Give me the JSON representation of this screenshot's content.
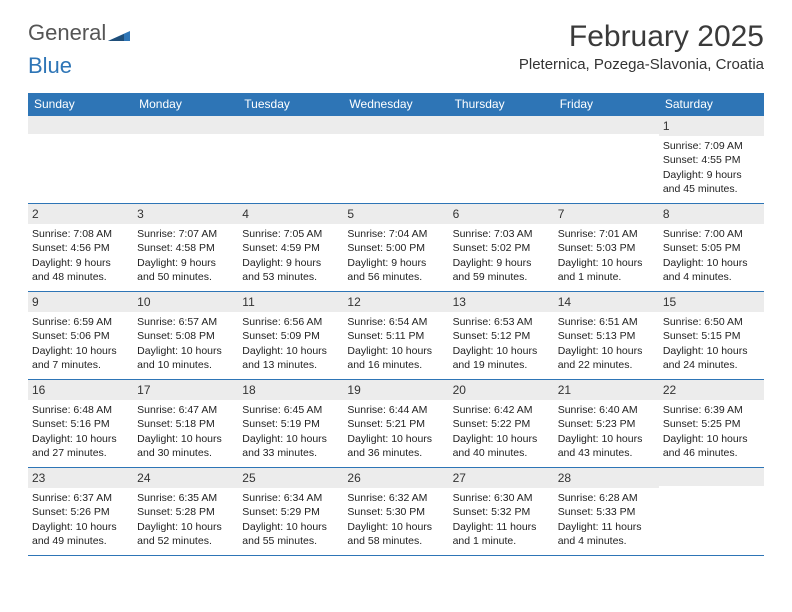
{
  "brand": {
    "word1": "General",
    "word2": "Blue"
  },
  "header": {
    "month": "February 2025",
    "location": "Pleternica, Pozega-Slavonia, Croatia"
  },
  "colors": {
    "accent": "#2e75b6",
    "row_alt": "#ececec",
    "text": "#222222",
    "bg": "#ffffff"
  },
  "days": [
    "Sunday",
    "Monday",
    "Tuesday",
    "Wednesday",
    "Thursday",
    "Friday",
    "Saturday"
  ],
  "weeks": [
    [
      null,
      null,
      null,
      null,
      null,
      null,
      {
        "n": "1",
        "sr": "Sunrise: 7:09 AM",
        "ss": "Sunset: 4:55 PM",
        "d1": "Daylight: 9 hours",
        "d2": "and 45 minutes."
      }
    ],
    [
      {
        "n": "2",
        "sr": "Sunrise: 7:08 AM",
        "ss": "Sunset: 4:56 PM",
        "d1": "Daylight: 9 hours",
        "d2": "and 48 minutes."
      },
      {
        "n": "3",
        "sr": "Sunrise: 7:07 AM",
        "ss": "Sunset: 4:58 PM",
        "d1": "Daylight: 9 hours",
        "d2": "and 50 minutes."
      },
      {
        "n": "4",
        "sr": "Sunrise: 7:05 AM",
        "ss": "Sunset: 4:59 PM",
        "d1": "Daylight: 9 hours",
        "d2": "and 53 minutes."
      },
      {
        "n": "5",
        "sr": "Sunrise: 7:04 AM",
        "ss": "Sunset: 5:00 PM",
        "d1": "Daylight: 9 hours",
        "d2": "and 56 minutes."
      },
      {
        "n": "6",
        "sr": "Sunrise: 7:03 AM",
        "ss": "Sunset: 5:02 PM",
        "d1": "Daylight: 9 hours",
        "d2": "and 59 minutes."
      },
      {
        "n": "7",
        "sr": "Sunrise: 7:01 AM",
        "ss": "Sunset: 5:03 PM",
        "d1": "Daylight: 10 hours",
        "d2": "and 1 minute."
      },
      {
        "n": "8",
        "sr": "Sunrise: 7:00 AM",
        "ss": "Sunset: 5:05 PM",
        "d1": "Daylight: 10 hours",
        "d2": "and 4 minutes."
      }
    ],
    [
      {
        "n": "9",
        "sr": "Sunrise: 6:59 AM",
        "ss": "Sunset: 5:06 PM",
        "d1": "Daylight: 10 hours",
        "d2": "and 7 minutes."
      },
      {
        "n": "10",
        "sr": "Sunrise: 6:57 AM",
        "ss": "Sunset: 5:08 PM",
        "d1": "Daylight: 10 hours",
        "d2": "and 10 minutes."
      },
      {
        "n": "11",
        "sr": "Sunrise: 6:56 AM",
        "ss": "Sunset: 5:09 PM",
        "d1": "Daylight: 10 hours",
        "d2": "and 13 minutes."
      },
      {
        "n": "12",
        "sr": "Sunrise: 6:54 AM",
        "ss": "Sunset: 5:11 PM",
        "d1": "Daylight: 10 hours",
        "d2": "and 16 minutes."
      },
      {
        "n": "13",
        "sr": "Sunrise: 6:53 AM",
        "ss": "Sunset: 5:12 PM",
        "d1": "Daylight: 10 hours",
        "d2": "and 19 minutes."
      },
      {
        "n": "14",
        "sr": "Sunrise: 6:51 AM",
        "ss": "Sunset: 5:13 PM",
        "d1": "Daylight: 10 hours",
        "d2": "and 22 minutes."
      },
      {
        "n": "15",
        "sr": "Sunrise: 6:50 AM",
        "ss": "Sunset: 5:15 PM",
        "d1": "Daylight: 10 hours",
        "d2": "and 24 minutes."
      }
    ],
    [
      {
        "n": "16",
        "sr": "Sunrise: 6:48 AM",
        "ss": "Sunset: 5:16 PM",
        "d1": "Daylight: 10 hours",
        "d2": "and 27 minutes."
      },
      {
        "n": "17",
        "sr": "Sunrise: 6:47 AM",
        "ss": "Sunset: 5:18 PM",
        "d1": "Daylight: 10 hours",
        "d2": "and 30 minutes."
      },
      {
        "n": "18",
        "sr": "Sunrise: 6:45 AM",
        "ss": "Sunset: 5:19 PM",
        "d1": "Daylight: 10 hours",
        "d2": "and 33 minutes."
      },
      {
        "n": "19",
        "sr": "Sunrise: 6:44 AM",
        "ss": "Sunset: 5:21 PM",
        "d1": "Daylight: 10 hours",
        "d2": "and 36 minutes."
      },
      {
        "n": "20",
        "sr": "Sunrise: 6:42 AM",
        "ss": "Sunset: 5:22 PM",
        "d1": "Daylight: 10 hours",
        "d2": "and 40 minutes."
      },
      {
        "n": "21",
        "sr": "Sunrise: 6:40 AM",
        "ss": "Sunset: 5:23 PM",
        "d1": "Daylight: 10 hours",
        "d2": "and 43 minutes."
      },
      {
        "n": "22",
        "sr": "Sunrise: 6:39 AM",
        "ss": "Sunset: 5:25 PM",
        "d1": "Daylight: 10 hours",
        "d2": "and 46 minutes."
      }
    ],
    [
      {
        "n": "23",
        "sr": "Sunrise: 6:37 AM",
        "ss": "Sunset: 5:26 PM",
        "d1": "Daylight: 10 hours",
        "d2": "and 49 minutes."
      },
      {
        "n": "24",
        "sr": "Sunrise: 6:35 AM",
        "ss": "Sunset: 5:28 PM",
        "d1": "Daylight: 10 hours",
        "d2": "and 52 minutes."
      },
      {
        "n": "25",
        "sr": "Sunrise: 6:34 AM",
        "ss": "Sunset: 5:29 PM",
        "d1": "Daylight: 10 hours",
        "d2": "and 55 minutes."
      },
      {
        "n": "26",
        "sr": "Sunrise: 6:32 AM",
        "ss": "Sunset: 5:30 PM",
        "d1": "Daylight: 10 hours",
        "d2": "and 58 minutes."
      },
      {
        "n": "27",
        "sr": "Sunrise: 6:30 AM",
        "ss": "Sunset: 5:32 PM",
        "d1": "Daylight: 11 hours",
        "d2": "and 1 minute."
      },
      {
        "n": "28",
        "sr": "Sunrise: 6:28 AM",
        "ss": "Sunset: 5:33 PM",
        "d1": "Daylight: 11 hours",
        "d2": "and 4 minutes."
      },
      null
    ]
  ]
}
